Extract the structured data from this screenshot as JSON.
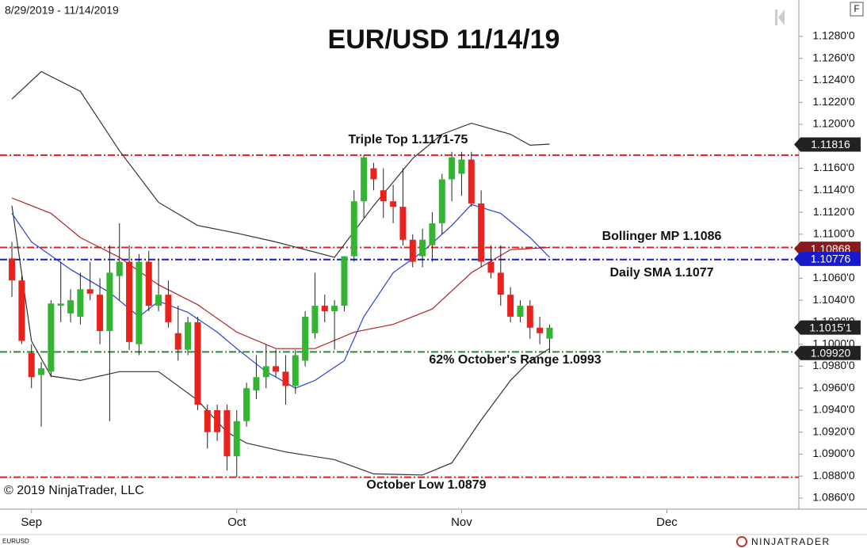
{
  "chart_data": {
    "type": "candlestick",
    "title": "EUR/USD 11/14/19",
    "date_range": "8/29/2019 - 11/14/2019",
    "copyright": "© 2019 NinjaTrader, LLC",
    "symbol": "EURUSD",
    "logo": "NINJATRADER",
    "panel_button": "F",
    "up_color": "#33b533",
    "down_color": "#e8231e",
    "open": [
      1.1078,
      1.1058,
      1.0992,
      1.0972,
      1.0975,
      1.1035,
      1.1028,
      1.1025,
      1.105,
      1.1045,
      1.1012,
      1.1062,
      1.1075,
      1.1,
      1.1075,
      1.1035,
      1.1045,
      1.101,
      1.0995,
      1.102,
      1.094,
      1.094,
      1.094,
      1.0898,
      1.093,
      1.0958,
      1.097,
      1.098,
      1.0975,
      1.0962,
      1.0985,
      1.101,
      1.1035,
      1.103,
      1.1035,
      1.108,
      1.113,
      1.116,
      1.114,
      1.113,
      1.1125,
      1.1095,
      1.108,
      1.109,
      1.111,
      1.115,
      1.1155,
      1.1168,
      1.1128,
      1.1075,
      1.1065,
      1.1045,
      1.1025,
      1.1035,
      1.1015,
      1.1005
    ],
    "high": [
      1.1093,
      1.1062,
      1.1,
      1.0984,
      1.104,
      1.1075,
      1.105,
      1.1065,
      1.1075,
      1.106,
      1.109,
      1.111,
      1.109,
      1.1082,
      1.1085,
      1.1078,
      1.1058,
      1.1035,
      1.1025,
      1.1025,
      1.0945,
      1.0945,
      1.0945,
      1.094,
      1.0965,
      1.099,
      1.1,
      1.0995,
      1.099,
      1.0995,
      1.103,
      1.1065,
      1.1045,
      1.104,
      1.108,
      1.114,
      1.1172,
      1.1165,
      1.116,
      1.1145,
      1.116,
      1.11,
      1.1105,
      1.112,
      1.1155,
      1.1175,
      1.1175,
      1.1175,
      1.114,
      1.109,
      1.109,
      1.1052,
      1.104,
      1.104,
      1.1025,
      1.1018
    ],
    "low": [
      1.1043,
      1.1,
      1.096,
      1.0925,
      1.097,
      1.102,
      1.102,
      1.1018,
      1.104,
      1.1,
      1.093,
      1.104,
      1.0995,
      1.099,
      1.103,
      1.103,
      1.1015,
      1.0985,
      1.099,
      1.094,
      1.0905,
      1.0912,
      1.0885,
      1.0879,
      1.0925,
      1.095,
      1.096,
      1.097,
      1.0945,
      1.0955,
      1.098,
      1.1005,
      1.102,
      1.0995,
      1.103,
      1.1075,
      1.1115,
      1.114,
      1.1115,
      1.111,
      1.109,
      1.107,
      1.107,
      1.1075,
      1.11,
      1.113,
      1.1135,
      1.1125,
      1.107,
      1.106,
      1.1035,
      1.102,
      1.102,
      1.1005,
      1.1,
      1.0992
    ],
    "close": [
      1.1058,
      1.1003,
      1.097,
      1.0978,
      1.1037,
      1.1037,
      1.104,
      1.105,
      1.1046,
      1.1012,
      1.1065,
      1.1075,
      1.1002,
      1.1075,
      1.1035,
      1.1045,
      1.102,
      1.0995,
      1.102,
      1.0945,
      1.092,
      1.092,
      1.0898,
      1.093,
      1.096,
      1.097,
      1.098,
      1.0975,
      1.0962,
      1.099,
      1.1025,
      1.1035,
      1.103,
      1.1035,
      1.108,
      1.113,
      1.117,
      1.115,
      1.113,
      1.1125,
      1.1095,
      1.1075,
      1.1095,
      1.111,
      1.115,
      1.117,
      1.1168,
      1.1128,
      1.1075,
      1.1065,
      1.1045,
      1.1025,
      1.1035,
      1.1015,
      1.101,
      1.1015
    ],
    "xlim": [
      -1.22,
      80.5
    ],
    "xticks": [
      {
        "value": 2,
        "label": "Sep"
      },
      {
        "value": 23,
        "label": "Oct"
      },
      {
        "value": 46,
        "label": "Nov"
      },
      {
        "value": 67,
        "label": "Dec"
      }
    ],
    "ylim": [
      1.08499,
      1.13131
    ],
    "yticks": [
      {
        "value": 1.086,
        "label": "1.0860'0"
      },
      {
        "value": 1.088,
        "label": "1.0880'0"
      },
      {
        "value": 1.09,
        "label": "1.0900'0"
      },
      {
        "value": 1.092,
        "label": "1.0920'0"
      },
      {
        "value": 1.094,
        "label": "1.0940'0"
      },
      {
        "value": 1.096,
        "label": "1.0960'0"
      },
      {
        "value": 1.098,
        "label": "1.0980'0"
      },
      {
        "value": 1.1,
        "label": "1.1000'0"
      },
      {
        "value": 1.102,
        "label": "1.1020'0"
      },
      {
        "value": 1.104,
        "label": "1.1040'0"
      },
      {
        "value": 1.106,
        "label": "1.1060'0"
      },
      {
        "value": 1.108,
        "label": "1.1080'0"
      },
      {
        "value": 1.11,
        "label": "1.1100'0"
      },
      {
        "value": 1.112,
        "label": "1.1120'0"
      },
      {
        "value": 1.114,
        "label": "1.1140'0"
      },
      {
        "value": 1.116,
        "label": "1.1160'0"
      },
      {
        "value": 1.118,
        "label": "1.1180'0"
      },
      {
        "value": 1.12,
        "label": "1.1200'0"
      },
      {
        "value": 1.122,
        "label": "1.1220'0"
      },
      {
        "value": 1.124,
        "label": "1.1240'0"
      },
      {
        "value": 1.126,
        "label": "1.1260'0"
      },
      {
        "value": 1.128,
        "label": "1.1280'0"
      }
    ],
    "lines": [
      {
        "color": "#333333",
        "x": [
          0,
          3,
          7,
          11,
          15,
          19,
          23,
          27,
          33,
          37,
          41,
          44,
          47,
          51,
          53,
          55
        ],
        "values": [
          1.1223,
          1.1248,
          1.123,
          1.1176,
          1.1129,
          1.1108,
          1.1101,
          1.1093,
          1.1079,
          1.1126,
          1.1169,
          1.1191,
          1.1201,
          1.1191,
          1.1181,
          1.1182
        ]
      },
      {
        "color": "#333333",
        "x": [
          0,
          2,
          4,
          7,
          11,
          15,
          19,
          22,
          24,
          28,
          33,
          37,
          42,
          45,
          48,
          51,
          53,
          55
        ],
        "values": [
          1.1126,
          1.1003,
          1.0971,
          1.0967,
          1.0975,
          1.0975,
          1.0949,
          1.092,
          1.091,
          1.0902,
          1.0895,
          1.0882,
          1.0881,
          1.0892,
          1.0931,
          1.0967,
          1.0985,
          1.0996
        ]
      },
      {
        "color": "#b22222",
        "x": [
          0,
          4,
          7,
          11,
          15,
          19,
          23,
          27,
          31,
          35,
          39,
          43,
          47,
          51,
          55
        ],
        "values": [
          1.1133,
          1.1119,
          1.1097,
          1.1079,
          1.1054,
          1.1036,
          1.1011,
          1.0996,
          1.0996,
          1.1011,
          1.1018,
          1.1032,
          1.1065,
          1.1086,
          1.1088
        ]
      },
      {
        "color": "#2a3fd8",
        "x": [
          0,
          2,
          6,
          10,
          13,
          15,
          18,
          21,
          23,
          26,
          29,
          31,
          34,
          36,
          39,
          42,
          45,
          47,
          50,
          53,
          55
        ],
        "values": [
          1.1119,
          1.1093,
          1.1068,
          1.1047,
          1.1025,
          1.1039,
          1.1029,
          1.1011,
          1.0996,
          1.0975,
          1.096,
          1.0967,
          1.0985,
          1.1025,
          1.1065,
          1.1084,
          1.1108,
          1.1127,
          1.1119,
          1.1097,
          1.1079
        ]
      }
    ],
    "levels": [
      {
        "value": 1.1172,
        "color": "#e02020"
      },
      {
        "value": 1.1088,
        "color": "#e02020"
      },
      {
        "value": 1.1077,
        "color": "#1a1acc"
      },
      {
        "value": 1.0993,
        "color": "#2e8b3e"
      },
      {
        "value": 1.0879,
        "color": "#e02020"
      }
    ],
    "annotations": [
      "Triple Top 1.1171-75",
      "Bollinger MP 1.1086",
      "Daily SMA 1.1077",
      "62% October's Range 1.0993",
      "October Low 1.0879"
    ],
    "price_labels": [
      {
        "value": 1.11816,
        "label": "1.11816",
        "color": "#222222"
      },
      {
        "value": 1.10868,
        "label": "1.10868",
        "color": "#8b1a1a"
      },
      {
        "value": 1.10776,
        "label": "1.10776",
        "color": "#1a1acc"
      },
      {
        "value": 1.10151,
        "label": "1.1015'1",
        "color": "#222222"
      },
      {
        "value": 1.0992,
        "label": "1.09920",
        "color": "#222222"
      }
    ]
  }
}
